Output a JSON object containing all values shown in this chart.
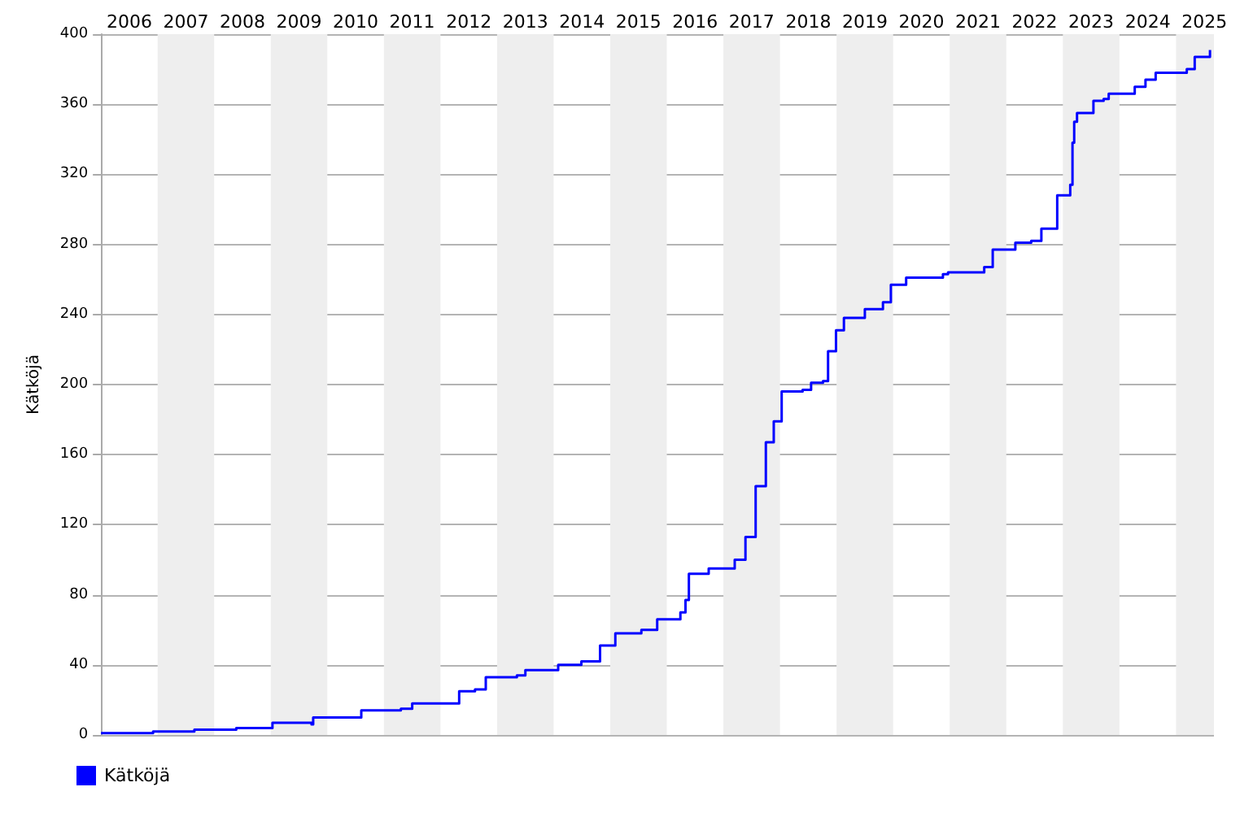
{
  "chart_data": {
    "type": "step",
    "ylabel": "Kätköjä",
    "legend": "bottom left",
    "grid": "y",
    "marker": "none",
    "xlim": [
      2006,
      2025.67
    ],
    "ylim": [
      0,
      400
    ],
    "xticks": [
      {
        "value": 2006.5,
        "label": "2006"
      },
      {
        "value": 2007.5,
        "label": "2007"
      },
      {
        "value": 2008.5,
        "label": "2008"
      },
      {
        "value": 2009.5,
        "label": "2009"
      },
      {
        "value": 2010.5,
        "label": "2010"
      },
      {
        "value": 2011.5,
        "label": "2011"
      },
      {
        "value": 2012.5,
        "label": "2012"
      },
      {
        "value": 2013.5,
        "label": "2013"
      },
      {
        "value": 2014.5,
        "label": "2014"
      },
      {
        "value": 2015.5,
        "label": "2015"
      },
      {
        "value": 2016.5,
        "label": "2016"
      },
      {
        "value": 2017.5,
        "label": "2017"
      },
      {
        "value": 2018.5,
        "label": "2018"
      },
      {
        "value": 2019.5,
        "label": "2019"
      },
      {
        "value": 2020.5,
        "label": "2020"
      },
      {
        "value": 2021.5,
        "label": "2021"
      },
      {
        "value": 2022.5,
        "label": "2022"
      },
      {
        "value": 2023.5,
        "label": "2023"
      },
      {
        "value": 2024.5,
        "label": "2024"
      },
      {
        "value": 2025.5,
        "label": "2025"
      }
    ],
    "yticks": [
      0,
      40,
      80,
      120,
      160,
      200,
      240,
      280,
      320,
      360,
      400
    ],
    "bands": [
      {
        "axis": "x",
        "from": 2007,
        "to": 2008,
        "color": "#eeeeee"
      },
      {
        "axis": "x",
        "from": 2009,
        "to": 2010,
        "color": "#eeeeee"
      },
      {
        "axis": "x",
        "from": 2011,
        "to": 2012,
        "color": "#eeeeee"
      },
      {
        "axis": "x",
        "from": 2013,
        "to": 2014,
        "color": "#eeeeee"
      },
      {
        "axis": "x",
        "from": 2015,
        "to": 2016,
        "color": "#eeeeee"
      },
      {
        "axis": "x",
        "from": 2017,
        "to": 2018,
        "color": "#eeeeee"
      },
      {
        "axis": "x",
        "from": 2019,
        "to": 2020,
        "color": "#eeeeee"
      },
      {
        "axis": "x",
        "from": 2021,
        "to": 2022,
        "color": "#eeeeee"
      },
      {
        "axis": "x",
        "from": 2023,
        "to": 2024,
        "color": "#eeeeee"
      },
      {
        "axis": "x",
        "from": 2025,
        "to": 2025.67,
        "color": "#eeeeee"
      }
    ],
    "series": [
      {
        "name": "Kätköjä",
        "color": "#0000ff",
        "x": [
          2006,
          2006.92,
          2007.65,
          2008.39,
          2009.03,
          2009.72,
          2009.75,
          2010.41,
          2010.6,
          2011.3,
          2011.5,
          2012.24,
          2012.33,
          2012.61,
          2012.8,
          2013.35,
          2013.5,
          2014.08,
          2014.49,
          2014.82,
          2015.09,
          2015.55,
          2015.83,
          2016.24,
          2016.33,
          2016.39,
          2016.74,
          2017.2,
          2017.39,
          2017.57,
          2017.75,
          2017.89,
          2018.03,
          2018.4,
          2018.55,
          2018.76,
          2018.85,
          2018.99,
          2019.13,
          2019.5,
          2019.82,
          2019.96,
          2020.23,
          2020.88,
          2020.97,
          2021.61,
          2021.76,
          2022.16,
          2022.44,
          2022.62,
          2022.8,
          2022.9,
          2023.13,
          2023.17,
          2023.2,
          2023.25,
          2023.45,
          2023.54,
          2023.72,
          2023.81,
          2024.27,
          2024.46,
          2024.64,
          2025.19,
          2025.33,
          2025.6
        ],
        "values": [
          1,
          2,
          3,
          4,
          7,
          6,
          10,
          10,
          14,
          15,
          18,
          18,
          25,
          26,
          33,
          34,
          37,
          40,
          42,
          51,
          58,
          60,
          66,
          70,
          77,
          92,
          95,
          100,
          113,
          142,
          167,
          179,
          196,
          197,
          201,
          202,
          219,
          231,
          238,
          243,
          247,
          257,
          261,
          263,
          264,
          267,
          277,
          281,
          282,
          289,
          289,
          308,
          314,
          338,
          350,
          355,
          355,
          362,
          363,
          366,
          370,
          374,
          378,
          380,
          387,
          391
        ]
      }
    ]
  }
}
